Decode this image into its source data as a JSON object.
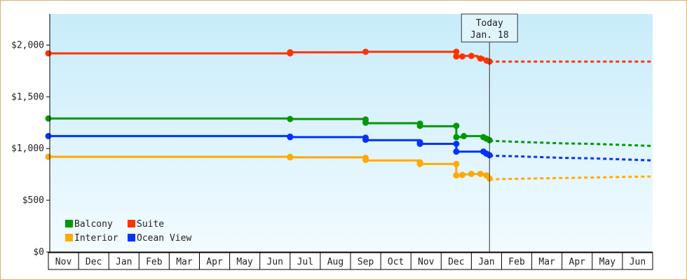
{
  "chart_data": {
    "type": "line",
    "title": "",
    "xlabel": "",
    "ylabel": "",
    "x_axis": {
      "labels": [
        "Nov",
        "Dec",
        "Jan",
        "Feb",
        "Mar",
        "Apr",
        "May",
        "Jun",
        "Jul",
        "Aug",
        "Sep",
        "Oct",
        "Nov",
        "Dec",
        "Jan",
        "Feb",
        "Mar",
        "Apr",
        "May",
        "Jun"
      ]
    },
    "y_axis": {
      "range": [
        0,
        2300
      ],
      "ticks": [
        0,
        500,
        1000,
        1500,
        2000
      ],
      "tick_labels": [
        "$0",
        "$500",
        "$1,000",
        "$1,500",
        "$2,000"
      ]
    },
    "grid": false,
    "background": "light-blue vertical gradient",
    "legend": {
      "position": "bottom-left",
      "columns": 2
    },
    "today_marker": {
      "line1": "Today",
      "line2": "Jan. 18",
      "x": 14.6
    },
    "series": [
      {
        "name": "Suite",
        "color": "#ff3300",
        "points": [
          [
            0,
            1920
          ],
          [
            8,
            1920
          ],
          [
            8,
            1930
          ],
          [
            10.5,
            1930
          ],
          [
            10.5,
            1935
          ],
          [
            13.5,
            1935
          ],
          [
            13.5,
            1890
          ],
          [
            13.7,
            1890
          ],
          [
            13.7,
            1895
          ],
          [
            14.2,
            1895
          ],
          [
            14.2,
            1880
          ],
          [
            14.4,
            1880
          ],
          [
            14.4,
            1860
          ],
          [
            14.6,
            1840
          ]
        ],
        "markers": [
          [
            0,
            1920
          ],
          [
            8,
            1920
          ],
          [
            8,
            1930
          ],
          [
            10.5,
            1935
          ],
          [
            13.5,
            1935
          ],
          [
            13.5,
            1890
          ],
          [
            13.7,
            1890
          ],
          [
            14.0,
            1895
          ],
          [
            14.3,
            1870
          ],
          [
            14.5,
            1850
          ],
          [
            14.6,
            1840
          ]
        ],
        "forecast": [
          [
            14.6,
            1840
          ],
          [
            20,
            1840
          ]
        ]
      },
      {
        "name": "Balcony",
        "color": "#009900",
        "points": [
          [
            0,
            1290
          ],
          [
            8,
            1290
          ],
          [
            8,
            1285
          ],
          [
            10.5,
            1285
          ],
          [
            10.5,
            1245
          ],
          [
            12.3,
            1245
          ],
          [
            12.3,
            1215
          ],
          [
            13.5,
            1215
          ],
          [
            13.5,
            1110
          ],
          [
            13.7,
            1110
          ],
          [
            13.7,
            1120
          ],
          [
            14.4,
            1120
          ],
          [
            14.4,
            1100
          ],
          [
            14.6,
            1080
          ]
        ],
        "markers": [
          [
            0,
            1290
          ],
          [
            8,
            1285
          ],
          [
            10.5,
            1280
          ],
          [
            10.5,
            1250
          ],
          [
            12.3,
            1240
          ],
          [
            12.3,
            1220
          ],
          [
            13.5,
            1220
          ],
          [
            13.5,
            1110
          ],
          [
            13.75,
            1120
          ],
          [
            14.4,
            1110
          ],
          [
            14.5,
            1095
          ],
          [
            14.6,
            1080
          ]
        ],
        "forecast": [
          [
            14.6,
            1075
          ],
          [
            15.5,
            1065
          ],
          [
            16,
            1060
          ],
          [
            17,
            1050
          ],
          [
            18,
            1045
          ],
          [
            19,
            1035
          ],
          [
            20,
            1025
          ]
        ]
      },
      {
        "name": "Ocean View",
        "color": "#0033ff",
        "points": [
          [
            0,
            1120
          ],
          [
            8,
            1120
          ],
          [
            8,
            1110
          ],
          [
            10.5,
            1110
          ],
          [
            10.5,
            1080
          ],
          [
            12.3,
            1080
          ],
          [
            12.3,
            1045
          ],
          [
            13.5,
            1045
          ],
          [
            13.5,
            970
          ],
          [
            14.4,
            970
          ],
          [
            14.4,
            960
          ],
          [
            14.6,
            940
          ]
        ],
        "markers": [
          [
            0,
            1120
          ],
          [
            8,
            1115
          ],
          [
            8,
            1110
          ],
          [
            10.5,
            1105
          ],
          [
            10.5,
            1085
          ],
          [
            12.3,
            1060
          ],
          [
            12.3,
            1045
          ],
          [
            13.5,
            1045
          ],
          [
            13.5,
            970
          ],
          [
            14.4,
            970
          ],
          [
            14.5,
            950
          ],
          [
            14.6,
            935
          ]
        ],
        "forecast": [
          [
            14.6,
            930
          ],
          [
            15.5,
            925
          ],
          [
            17,
            910
          ],
          [
            18,
            905
          ],
          [
            19,
            895
          ],
          [
            20,
            885
          ]
        ]
      },
      {
        "name": "Interior",
        "color": "#ffaa00",
        "points": [
          [
            0,
            920
          ],
          [
            8,
            920
          ],
          [
            8,
            915
          ],
          [
            10.5,
            915
          ],
          [
            10.5,
            885
          ],
          [
            12.3,
            885
          ],
          [
            12.3,
            850
          ],
          [
            13.5,
            850
          ],
          [
            13.5,
            740
          ],
          [
            13.7,
            740
          ],
          [
            13.7,
            750
          ],
          [
            14.0,
            750
          ],
          [
            14.0,
            755
          ],
          [
            14.4,
            755
          ],
          [
            14.4,
            745
          ],
          [
            14.6,
            710
          ]
        ],
        "markers": [
          [
            0,
            920
          ],
          [
            8,
            920
          ],
          [
            8,
            915
          ],
          [
            10.5,
            910
          ],
          [
            10.5,
            890
          ],
          [
            12.3,
            865
          ],
          [
            12.3,
            850
          ],
          [
            13.5,
            850
          ],
          [
            13.5,
            740
          ],
          [
            13.7,
            745
          ],
          [
            14.0,
            755
          ],
          [
            14.3,
            755
          ],
          [
            14.5,
            740
          ],
          [
            14.6,
            710
          ]
        ],
        "forecast": [
          [
            14.6,
            700
          ],
          [
            15,
            705
          ],
          [
            16,
            710
          ],
          [
            17,
            715
          ],
          [
            18,
            720
          ],
          [
            19,
            725
          ],
          [
            20,
            730
          ]
        ]
      }
    ]
  },
  "legend_items": [
    {
      "label": "Balcony",
      "color": "#009900"
    },
    {
      "label": "Suite",
      "color": "#ff3300"
    },
    {
      "label": "Interior",
      "color": "#ffaa00"
    },
    {
      "label": "Ocean View",
      "color": "#0033ff"
    }
  ]
}
